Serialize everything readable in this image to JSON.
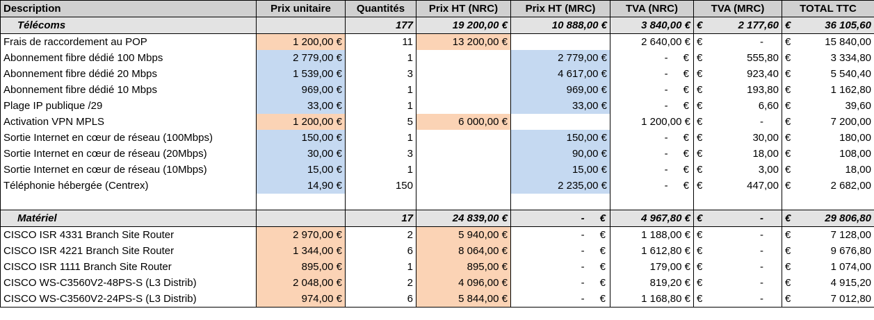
{
  "headers": [
    "Description",
    "Prix unitaire",
    "Quantités",
    "Prix HT (NRC)",
    "Prix HT (MRC)",
    "TVA (NRC)",
    "TVA (MRC)",
    "TOTAL TTC"
  ],
  "currency_symbol": "€",
  "sections": [
    {
      "title": "Télécoms",
      "qty": "177",
      "ht_nrc": "19 200,00 €",
      "ht_mrc": "10 888,00 €",
      "tva_nrc": "3 840,00 €",
      "tva_mrc": "2 177,60",
      "total": "36 105,60",
      "rows": [
        {
          "desc": "Frais de raccordement au POP",
          "unit": "1 200,00 €",
          "unit_color": "peach",
          "qty": "11",
          "nrc": "13 200,00 €",
          "mrc": "",
          "tva_nrc": "2 640,00 €",
          "tva_mrc": "-",
          "total": "15 840,00"
        },
        {
          "desc": "Abonnement fibre dédié 100 Mbps",
          "unit": "2 779,00 €",
          "unit_color": "blue",
          "qty": "1",
          "nrc": "",
          "mrc": "2 779,00 €",
          "tva_nrc": "-",
          "tva_mrc": "555,80",
          "total": "3 334,80"
        },
        {
          "desc": "Abonnement fibre dédié 20 Mbps",
          "unit": "1 539,00 €",
          "unit_color": "blue",
          "qty": "3",
          "nrc": "",
          "mrc": "4 617,00 €",
          "tva_nrc": "-",
          "tva_mrc": "923,40",
          "total": "5 540,40"
        },
        {
          "desc": "Abonnement fibre dédié 10 Mbps",
          "unit": "969,00 €",
          "unit_color": "blue",
          "qty": "1",
          "nrc": "",
          "mrc": "969,00 €",
          "tva_nrc": "-",
          "tva_mrc": "193,80",
          "total": "1 162,80"
        },
        {
          "desc": "Plage IP publique /29",
          "unit": "33,00 €",
          "unit_color": "blue",
          "qty": "1",
          "nrc": "",
          "mrc": "33,00 €",
          "tva_nrc": "-",
          "tva_mrc": "6,60",
          "total": "39,60"
        },
        {
          "desc": "Activation VPN MPLS",
          "unit": "1 200,00 €",
          "unit_color": "peach",
          "qty": "5",
          "nrc": "6 000,00 €",
          "mrc": "",
          "tva_nrc": "1 200,00 €",
          "tva_mrc": "-",
          "total": "7 200,00"
        },
        {
          "desc": "Sortie Internet en cœur de réseau (100Mbps)",
          "unit": "150,00 €",
          "unit_color": "blue",
          "qty": "1",
          "nrc": "",
          "mrc": "150,00 €",
          "tva_nrc": "-",
          "tva_mrc": "30,00",
          "total": "180,00"
        },
        {
          "desc": "Sortie Internet en cœur de réseau (20Mbps)",
          "unit": "30,00 €",
          "unit_color": "blue",
          "qty": "3",
          "nrc": "",
          "mrc": "90,00 €",
          "tva_nrc": "-",
          "tva_mrc": "18,00",
          "total": "108,00"
        },
        {
          "desc": "Sortie Internet en cœur de réseau (10Mbps)",
          "unit": "15,00 €",
          "unit_color": "blue",
          "qty": "1",
          "nrc": "",
          "mrc": "15,00 €",
          "tva_nrc": "-",
          "tva_mrc": "3,00",
          "total": "18,00"
        },
        {
          "desc": "Téléphonie hébergée (Centrex)",
          "unit": "14,90 €",
          "unit_color": "blue",
          "qty": "150",
          "nrc": "",
          "mrc": "2 235,00 €",
          "tva_nrc": "-",
          "tva_mrc": "447,00",
          "total": "2 682,00"
        }
      ]
    },
    {
      "title": "Matériel",
      "qty": "17",
      "ht_nrc": "24 839,00 €",
      "ht_mrc": "-",
      "tva_nrc": "4 967,80 €",
      "tva_mrc": "-",
      "total": "29 806,80",
      "rows": [
        {
          "desc": "CISCO ISR 4331 Branch Site Router",
          "unit": "2 970,00 €",
          "unit_color": "peach",
          "qty": "2",
          "nrc": "5 940,00 €",
          "mrc": "-",
          "tva_nrc": "1 188,00 €",
          "tva_mrc": "-",
          "total": "7 128,00"
        },
        {
          "desc": "CISCO ISR 4221 Branch Site Router",
          "unit": "1 344,00 €",
          "unit_color": "peach",
          "qty": "6",
          "nrc": "8 064,00 €",
          "mrc": "-",
          "tva_nrc": "1 612,80 €",
          "tva_mrc": "-",
          "total": "9 676,80"
        },
        {
          "desc": "CISCO ISR 1111 Branch Site Router",
          "unit": "895,00 €",
          "unit_color": "peach",
          "qty": "1",
          "nrc": "895,00 €",
          "mrc": "-",
          "tva_nrc": "179,00 €",
          "tva_mrc": "-",
          "total": "1 074,00"
        },
        {
          "desc": "CISCO WS-C3560V2-48PS-S (L3 Distrib)",
          "unit": "2 048,00 €",
          "unit_color": "peach",
          "qty": "2",
          "nrc": "4 096,00 €",
          "mrc": "-",
          "tva_nrc": "819,20 €",
          "tva_mrc": "-",
          "total": "4 915,20"
        },
        {
          "desc": "CISCO WS-C3560V2-24PS-S (L3 Distrib)",
          "unit": "974,00 €",
          "unit_color": "peach",
          "qty": "6",
          "nrc": "5 844,00 €",
          "mrc": "-",
          "tva_nrc": "1 168,80 €",
          "tva_mrc": "-",
          "total": "7 012,80"
        }
      ]
    }
  ]
}
